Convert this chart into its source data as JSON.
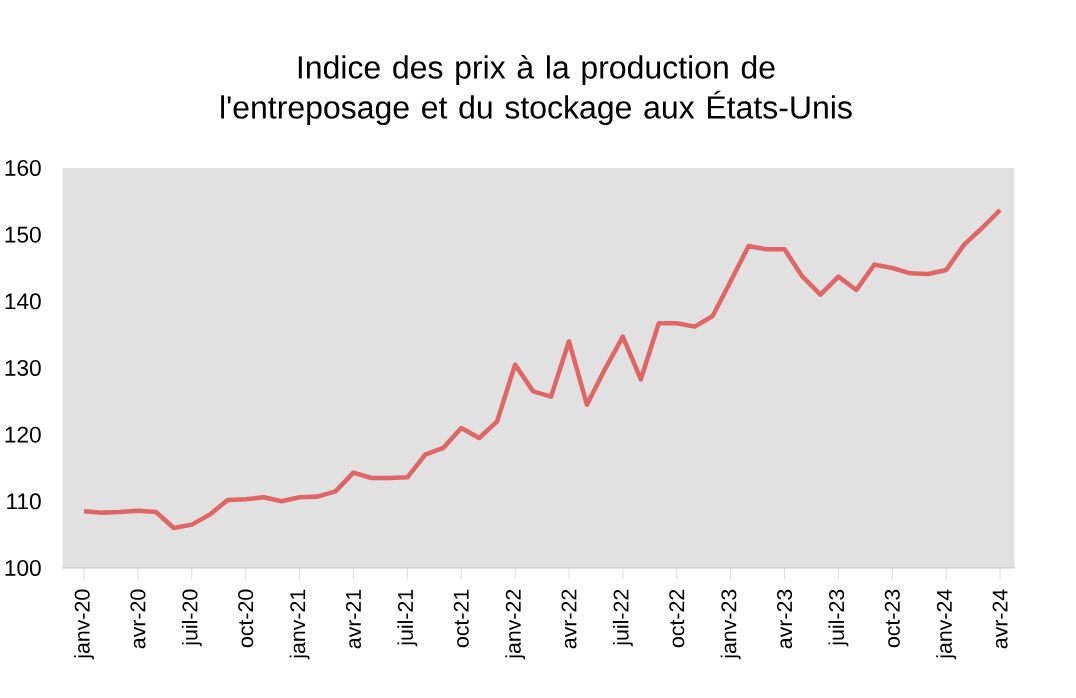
{
  "chart_data": {
    "type": "line",
    "title": "Indice des prix à la production de l'entreposage et du stockage aux États-Unis",
    "categories": [
      "janv-20",
      null,
      null,
      "avr-20",
      null,
      null,
      "juil-20",
      null,
      null,
      "oct-20",
      null,
      null,
      "janv-21",
      null,
      null,
      "avr-21",
      null,
      null,
      "juil-21",
      null,
      null,
      "oct-21",
      null,
      null,
      "janv-22",
      null,
      null,
      "avr-22",
      null,
      null,
      "juil-22",
      null,
      null,
      "oct-22",
      null,
      null,
      "janv-23",
      null,
      null,
      "avr-23",
      null,
      null,
      "juil-23",
      null,
      null,
      "oct-23",
      null,
      null,
      "janv-24",
      null,
      null,
      "avr-24"
    ],
    "series": [
      {
        "color": "#e06666",
        "values": [
          108.5,
          108.3,
          108.4,
          108.6,
          108.4,
          106,
          106.5,
          108,
          110.2,
          110.3,
          110.6,
          110,
          110.6,
          110.7,
          111.5,
          114.3,
          113.5,
          113.5,
          113.6,
          117,
          118,
          121,
          119.5,
          122,
          130.5,
          126.5,
          125.7,
          134,
          124.5,
          129.8,
          134.7,
          128.3,
          136.7,
          136.7,
          136.2,
          137.8,
          143,
          148.3,
          147.8,
          147.8,
          143.7,
          141,
          143.7,
          141.7,
          145.5,
          145,
          144.2,
          144.1,
          144.7,
          148.5,
          151,
          153.7
        ]
      }
    ],
    "ylim": [
      100,
      160
    ],
    "yticks": [
      100,
      110,
      120,
      130,
      140,
      150,
      160
    ],
    "grid": false,
    "marker": "none",
    "line_style": "solid"
  }
}
